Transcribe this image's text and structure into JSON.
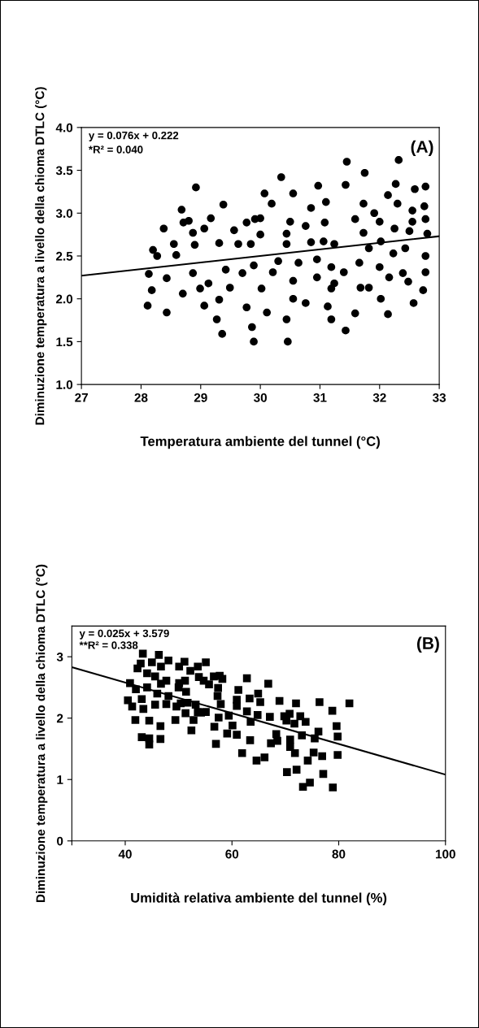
{
  "chart_data": [
    {
      "type": "scatter",
      "xlabel": "Temperatura ambiente del tunnel (°C)",
      "ylabel": "Diminuzione temperatura a livello della chioma DTLC (°C)",
      "annotations": [
        "y = 0.076x + 0.222",
        "*R² = 0.040",
        "(A)"
      ],
      "xlim": [
        27,
        33
      ],
      "xticks": [
        27,
        28,
        29,
        30,
        31,
        32,
        33
      ],
      "ylim": [
        1.0,
        4.0
      ],
      "yticks": [
        {
          "value": 1.0,
          "label": "1.0"
        },
        {
          "value": 1.5,
          "label": "1.5"
        },
        {
          "value": 2.0,
          "label": "2.0"
        },
        {
          "value": 2.5,
          "label": "2.5"
        },
        {
          "value": 3.0,
          "label": "3.0"
        },
        {
          "value": 3.5,
          "label": "3.5"
        },
        {
          "value": 4.0,
          "label": "4.0"
        }
      ],
      "series": [
        {
          "marker": "circle",
          "color": "#000000",
          "x": [
            28.11,
            28.18,
            28.13,
            28.2,
            28.27,
            28.38,
            28.43,
            28.43,
            28.55,
            28.59,
            28.68,
            28.7,
            28.71,
            28.8,
            28.87,
            28.9,
            28.87,
            28.92,
            28.99,
            29.06,
            29.06,
            29.13,
            29.17,
            29.27,
            29.31,
            29.31,
            29.36,
            29.38,
            29.42,
            29.49,
            29.56,
            29.63,
            29.7,
            29.77,
            29.77,
            29.84,
            29.86,
            29.89,
            29.89,
            29.91,
            30.0,
            30.0,
            30.02,
            30.07,
            30.11,
            30.19,
            30.21,
            30.3,
            30.35,
            30.44,
            30.44,
            30.44,
            30.46,
            30.5,
            30.55,
            30.55,
            30.55,
            30.64,
            30.76,
            30.76,
            30.85,
            30.85,
            30.95,
            30.95,
            30.97,
            31.06,
            31.08,
            31.1,
            31.13,
            31.19,
            31.19,
            31.19,
            31.24,
            31.24,
            31.4,
            31.43,
            31.43,
            31.45,
            31.59,
            31.59,
            31.66,
            31.68,
            31.73,
            31.73,
            31.75,
            31.82,
            31.82,
            31.91,
            32.0,
            32.0,
            32.02,
            32.02,
            32.14,
            32.16,
            32.14,
            32.23,
            32.25,
            32.27,
            32.3,
            32.32,
            32.39,
            32.43,
            32.48,
            32.5,
            32.55,
            32.55,
            32.57,
            32.59,
            32.73,
            32.75,
            32.77,
            32.77,
            32.77,
            32.77,
            32.8
          ],
          "values": [
            1.92,
            2.1,
            2.29,
            2.57,
            2.5,
            2.82,
            1.84,
            2.24,
            2.64,
            2.51,
            3.04,
            2.06,
            2.89,
            2.91,
            2.77,
            2.63,
            2.3,
            3.3,
            2.12,
            2.82,
            1.92,
            2.18,
            2.94,
            1.76,
            2.65,
            1.99,
            1.59,
            3.1,
            2.34,
            2.13,
            2.8,
            2.64,
            2.3,
            2.89,
            1.9,
            2.64,
            1.67,
            2.39,
            1.5,
            2.93,
            2.94,
            2.75,
            2.12,
            3.23,
            1.84,
            3.11,
            2.31,
            2.44,
            3.42,
            2.76,
            2.64,
            1.76,
            1.5,
            2.9,
            3.23,
            2.21,
            2.0,
            2.42,
            2.85,
            1.95,
            3.06,
            2.66,
            2.46,
            2.25,
            3.32,
            2.67,
            2.89,
            3.13,
            1.91,
            2.37,
            2.12,
            1.76,
            2.18,
            2.64,
            2.31,
            3.33,
            1.63,
            3.6,
            2.93,
            1.83,
            2.42,
            2.13,
            2.77,
            3.11,
            3.47,
            2.13,
            2.59,
            3.0,
            2.9,
            2.37,
            2.67,
            2.0,
            3.21,
            2.25,
            1.82,
            2.53,
            2.82,
            3.34,
            3.11,
            3.62,
            2.3,
            2.59,
            2.2,
            2.79,
            3.03,
            2.9,
            1.95,
            3.28,
            2.1,
            3.08,
            3.31,
            2.93,
            2.5,
            2.31,
            2.76
          ]
        },
        {
          "type": "line",
          "color": "#000000",
          "x": [
            27,
            33
          ],
          "values": [
            2.27,
            2.73
          ]
        }
      ]
    },
    {
      "type": "scatter",
      "xlabel": "Umidità relativa ambiente del tunnel (%)",
      "ylabel": "Diminuzione temperatura a livello della chioma DTLC (°C)",
      "annotations": [
        "y = 0.025x + 3.579",
        "**R² = 0.338",
        "(B)"
      ],
      "xlim": [
        30,
        100
      ],
      "xticks": [
        {
          "value": 30,
          "label": null
        },
        40,
        60,
        80,
        100
      ],
      "ylim": [
        0,
        3.5
      ],
      "yticks": [
        0,
        1,
        2,
        3
      ],
      "series": [
        {
          "marker": "square",
          "color": "#000000",
          "x": [
            40.9,
            40.5,
            41.3,
            42.0,
            41.9,
            42.3,
            42.9,
            43.1,
            43.4,
            43.3,
            44.1,
            44.1,
            44.5,
            44.5,
            43.1,
            44.5,
            45.0,
            45.6,
            45.6,
            46.0,
            46.3,
            46.6,
            46.6,
            46.7,
            46.7,
            47.7,
            47.7,
            48.1,
            48.1,
            49.4,
            49.6,
            50.0,
            50.1,
            50.1,
            50.4,
            51.1,
            51.2,
            51.3,
            51.4,
            51.7,
            52.2,
            52.4,
            52.8,
            53.2,
            53.6,
            53.6,
            53.8,
            54.2,
            54.7,
            55.1,
            55.1,
            55.7,
            56.6,
            56.7,
            57.0,
            57.3,
            57.4,
            57.5,
            57.7,
            57.9,
            58.2,
            59.1,
            59.4,
            60.1,
            60.9,
            60.9,
            60.9,
            61.2,
            61.9,
            62.8,
            62.8,
            63.3,
            63.4,
            63.5,
            64.6,
            64.8,
            64.9,
            65.3,
            66.1,
            66.8,
            67.1,
            67.3,
            68.3,
            68.5,
            68.9,
            69.8,
            70.2,
            70.3,
            70.8,
            70.9,
            70.9,
            71.7,
            71.8,
            72.0,
            72.1,
            72.8,
            73.1,
            73.3,
            73.8,
            74.2,
            74.6,
            75.3,
            75.5,
            76.2,
            76.4,
            76.9,
            77.1,
            78.8,
            78.9,
            79.6,
            79.8,
            79.8,
            82.0
          ],
          "values": [
            2.57,
            2.29,
            2.19,
            2.47,
            1.97,
            2.81,
            2.89,
            2.31,
            2.15,
            3.05,
            2.73,
            2.5,
            1.96,
            1.57,
            1.69,
            1.67,
            2.91,
            2.68,
            2.22,
            2.4,
            3.03,
            1.87,
            1.66,
            2.84,
            2.56,
            2.61,
            2.23,
            2.94,
            2.36,
            1.97,
            2.19,
            2.5,
            2.84,
            2.57,
            2.24,
            2.92,
            2.61,
            2.08,
            2.43,
            2.25,
            2.77,
            1.8,
            1.97,
            2.22,
            2.84,
            2.1,
            2.67,
            2.09,
            2.61,
            2.91,
            2.1,
            2.55,
            2.68,
            1.86,
            1.58,
            2.36,
            2.49,
            2.01,
            2.69,
            2.23,
            2.64,
            1.75,
            2.04,
            1.88,
            1.73,
            2.3,
            2.2,
            2.46,
            1.43,
            2.65,
            2.11,
            2.32,
            1.64,
            1.94,
            1.31,
            2.05,
            2.4,
            2.26,
            1.36,
            2.56,
            2.02,
            1.59,
            1.74,
            1.63,
            2.28,
            2.03,
            1.96,
            1.12,
            2.07,
            1.65,
            1.53,
            1.91,
            1.43,
            2.24,
            1.16,
            2.03,
            1.72,
            0.88,
            1.94,
            1.31,
            0.95,
            1.44,
            1.67,
            1.78,
            2.26,
            1.38,
            1.09,
            2.12,
            0.87,
            1.87,
            1.7,
            1.4,
            2.24
          ]
        },
        {
          "type": "line",
          "color": "#000000",
          "x": [
            30,
            100
          ],
          "values": [
            2.83,
            1.08
          ]
        }
      ]
    }
  ]
}
